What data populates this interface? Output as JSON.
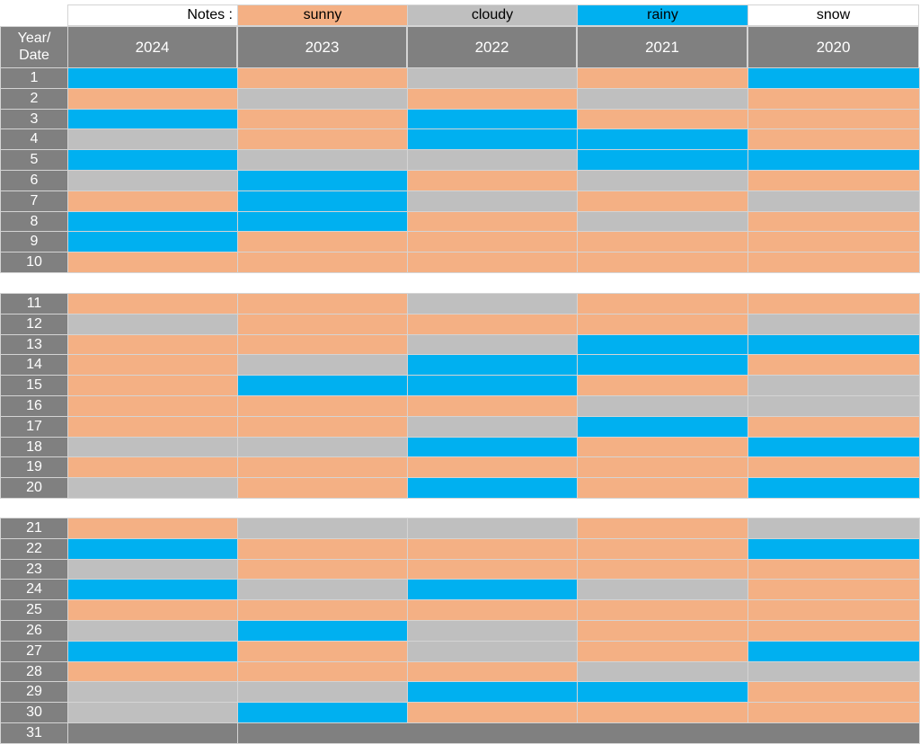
{
  "colors": {
    "sunny": "#f4b084",
    "cloudy": "#bfbfbf",
    "rainy": "#00b0f0",
    "snow": "#ffffff",
    "header": "#808080",
    "border": "#d4d4d4"
  },
  "legend": {
    "notes_label": "Notes :",
    "items": [
      {
        "key": "sunny",
        "label": "sunny"
      },
      {
        "key": "cloudy",
        "label": "cloudy"
      },
      {
        "key": "rainy",
        "label": "rainy"
      },
      {
        "key": "snow",
        "label": "snow"
      }
    ]
  },
  "header": {
    "corner_line1": "Year/",
    "corner_line2": "Date"
  },
  "chart_data": {
    "type": "heatmap",
    "years": [
      "2024",
      "2023",
      "2022",
      "2021",
      "2020"
    ],
    "blocks": [
      {
        "dates": [
          "1",
          "2",
          "3",
          "4",
          "5",
          "6",
          "7",
          "8",
          "9",
          "10"
        ],
        "weather": [
          [
            "rainy",
            "sunny",
            "cloudy",
            "sunny",
            "rainy"
          ],
          [
            "sunny",
            "cloudy",
            "sunny",
            "cloudy",
            "sunny"
          ],
          [
            "rainy",
            "sunny",
            "rainy",
            "sunny",
            "sunny"
          ],
          [
            "cloudy",
            "sunny",
            "rainy",
            "rainy",
            "sunny"
          ],
          [
            "rainy",
            "cloudy",
            "cloudy",
            "rainy",
            "rainy"
          ],
          [
            "cloudy",
            "rainy",
            "sunny",
            "cloudy",
            "sunny"
          ],
          [
            "sunny",
            "rainy",
            "cloudy",
            "sunny",
            "cloudy"
          ],
          [
            "rainy",
            "rainy",
            "sunny",
            "cloudy",
            "sunny"
          ],
          [
            "rainy",
            "sunny",
            "sunny",
            "sunny",
            "sunny"
          ],
          [
            "sunny",
            "sunny",
            "sunny",
            "sunny",
            "sunny"
          ]
        ]
      },
      {
        "dates": [
          "11",
          "12",
          "13",
          "14",
          "15",
          "16",
          "17",
          "18",
          "19",
          "20"
        ],
        "weather": [
          [
            "sunny",
            "sunny",
            "cloudy",
            "sunny",
            "sunny"
          ],
          [
            "cloudy",
            "sunny",
            "sunny",
            "sunny",
            "cloudy"
          ],
          [
            "sunny",
            "sunny",
            "cloudy",
            "rainy",
            "rainy"
          ],
          [
            "sunny",
            "cloudy",
            "rainy",
            "rainy",
            "sunny"
          ],
          [
            "sunny",
            "rainy",
            "rainy",
            "sunny",
            "cloudy"
          ],
          [
            "sunny",
            "sunny",
            "sunny",
            "cloudy",
            "cloudy"
          ],
          [
            "sunny",
            "sunny",
            "cloudy",
            "rainy",
            "sunny"
          ],
          [
            "cloudy",
            "cloudy",
            "rainy",
            "sunny",
            "rainy"
          ],
          [
            "sunny",
            "sunny",
            "sunny",
            "sunny",
            "sunny"
          ],
          [
            "cloudy",
            "sunny",
            "rainy",
            "sunny",
            "rainy"
          ]
        ]
      },
      {
        "dates": [
          "21",
          "22",
          "23",
          "24",
          "25",
          "26",
          "27",
          "28",
          "29",
          "30",
          "31"
        ],
        "weather": [
          [
            "sunny",
            "cloudy",
            "cloudy",
            "sunny",
            "cloudy"
          ],
          [
            "rainy",
            "sunny",
            "sunny",
            "sunny",
            "rainy"
          ],
          [
            "cloudy",
            "sunny",
            "sunny",
            "sunny",
            "sunny"
          ],
          [
            "rainy",
            "cloudy",
            "rainy",
            "cloudy",
            "sunny"
          ],
          [
            "sunny",
            "sunny",
            "sunny",
            "sunny",
            "sunny"
          ],
          [
            "cloudy",
            "rainy",
            "cloudy",
            "sunny",
            "sunny"
          ],
          [
            "rainy",
            "sunny",
            "cloudy",
            "sunny",
            "rainy"
          ],
          [
            "sunny",
            "sunny",
            "sunny",
            "cloudy",
            "cloudy"
          ],
          [
            "cloudy",
            "cloudy",
            "rainy",
            "rainy",
            "sunny"
          ],
          [
            "cloudy",
            "rainy",
            "sunny",
            "sunny",
            "sunny"
          ],
          [
            "none",
            "none",
            "none",
            "none",
            "none"
          ]
        ]
      }
    ]
  }
}
